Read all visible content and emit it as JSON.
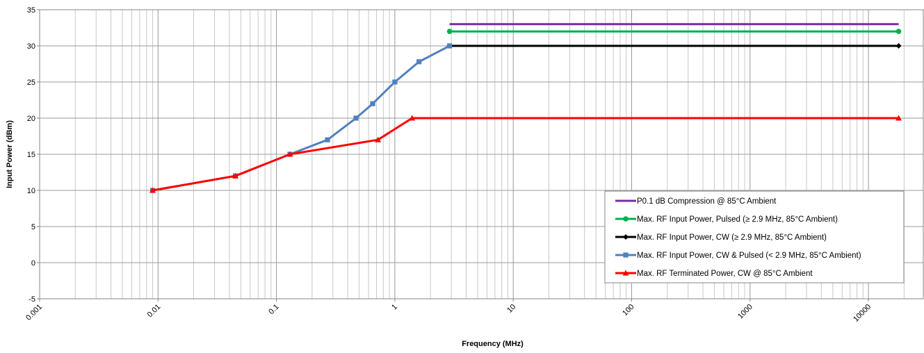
{
  "chart_data": {
    "type": "line",
    "xlabel": "Frequency (MHz)",
    "ylabel": "Input Power (dBm)",
    "x_scale": "log",
    "xlim": [
      0.001,
      20000
    ],
    "ylim": [
      -5,
      35
    ],
    "x_tick_labels": [
      "0.001",
      "0.01",
      "0.1",
      "1",
      "10",
      "100",
      "1000",
      "10000"
    ],
    "y_tick_labels": [
      "-5",
      "0",
      "5",
      "10",
      "15",
      "20",
      "25",
      "30",
      "35"
    ],
    "grid": true,
    "legend_position": "right",
    "series": [
      {
        "name": "P0.1 dB Compression @ 85°C Ambient",
        "color": "#7030a0",
        "marker": "none",
        "points": [
          [
            2.9,
            33
          ],
          [
            18000,
            33
          ]
        ]
      },
      {
        "name": "Max. RF Input Power, Pulsed (≥ 2.9 MHz, 85°C Ambient)",
        "color": "#00b050",
        "marker": "circle",
        "points": [
          [
            2.9,
            32
          ],
          [
            18000,
            32
          ]
        ]
      },
      {
        "name": "Max. RF Input Power, CW (≥ 2.9 MHz, 85°C Ambient)",
        "color": "#000000",
        "marker": "diamond",
        "points": [
          [
            2.9,
            30
          ],
          [
            18000,
            30
          ]
        ]
      },
      {
        "name": "Max. RF Input Power, CW & Pulsed (< 2.9 MHz, 85°C Ambient)",
        "color": "#4f81bd",
        "marker": "square",
        "points": [
          [
            0.009,
            10
          ],
          [
            0.045,
            12
          ],
          [
            0.13,
            15
          ],
          [
            0.27,
            17
          ],
          [
            0.47,
            20
          ],
          [
            0.65,
            22
          ],
          [
            1.0,
            25
          ],
          [
            1.6,
            27.8
          ],
          [
            2.9,
            30
          ]
        ]
      },
      {
        "name": "Max. RF Terminated Power, CW @ 85°C Ambient",
        "color": "#ff0000",
        "marker": "triangle",
        "points": [
          [
            0.009,
            10
          ],
          [
            0.045,
            12
          ],
          [
            0.13,
            15
          ],
          [
            0.72,
            17
          ],
          [
            1.4,
            20
          ],
          [
            18000,
            20
          ]
        ]
      }
    ]
  }
}
